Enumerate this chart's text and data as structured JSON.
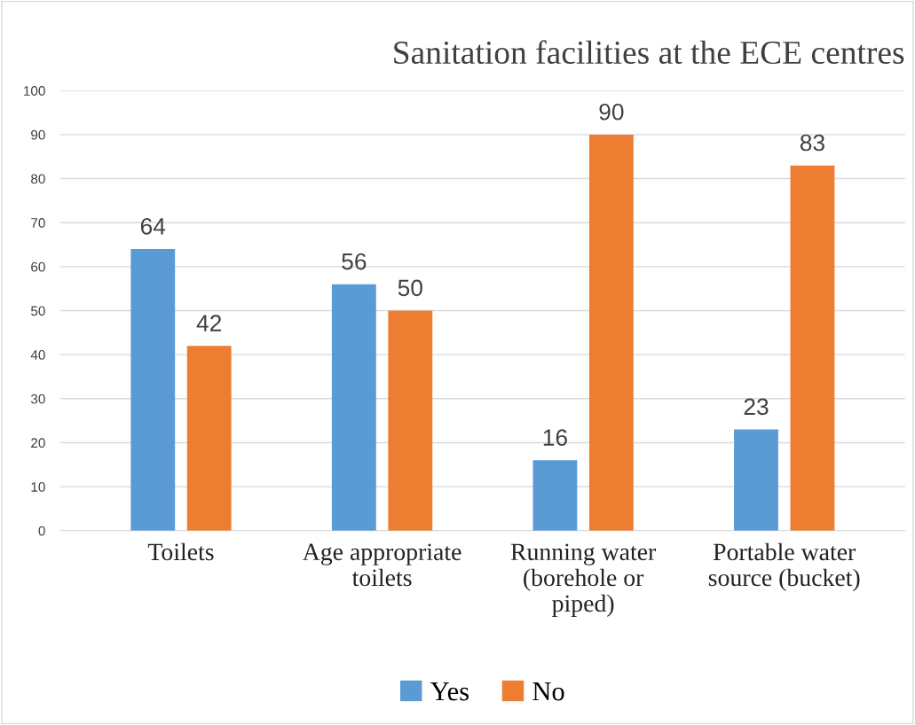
{
  "chart_data": {
    "type": "bar",
    "title": "Sanitation facilities at the ECE centres",
    "categories": [
      "Toilets",
      "Age appropriate\ntoilets",
      "Running water\n(borehole or\npiped)",
      "Portable water\nsource (bucket)"
    ],
    "series": [
      {
        "name": "Yes",
        "color": "#5b9bd5",
        "values": [
          64,
          56,
          16,
          23
        ]
      },
      {
        "name": "No",
        "color": "#ed7d31",
        "values": [
          42,
          50,
          90,
          83
        ]
      }
    ],
    "ylim": [
      0,
      100
    ],
    "yticks": [
      0,
      10,
      20,
      30,
      40,
      50,
      60,
      70,
      80,
      90,
      100
    ],
    "grid": "y",
    "legend": "bottom",
    "data_labels": true
  }
}
